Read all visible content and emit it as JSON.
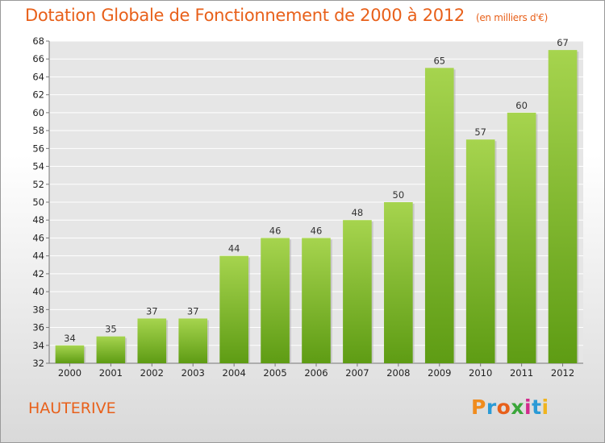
{
  "header": {
    "title": "Dotation Globale de Fonctionnement de 2000 à 2012",
    "unit": "(en milliers d'€)"
  },
  "footer": {
    "commune": "HAUTERIVE",
    "logo": "Proxiti",
    "logo_colors": [
      "#f08c1e",
      "#2a9ad6",
      "#e8601a",
      "#3aa63a",
      "#d22a8c",
      "#2a9ad6",
      "#f0b41e"
    ]
  },
  "colors": {
    "title": "#e8601a",
    "bar_top": "#a6d44e",
    "bar_bottom": "#5e9c14",
    "grid": "#ffffff",
    "axis": "#777777"
  },
  "chart_data": {
    "type": "bar",
    "title": "Dotation Globale de Fonctionnement de 2000 à 2012",
    "subtitle": "(en milliers d'€)",
    "xlabel": "",
    "ylabel": "",
    "categories": [
      "2000",
      "2001",
      "2002",
      "2003",
      "2004",
      "2005",
      "2006",
      "2007",
      "2008",
      "2009",
      "2010",
      "2011",
      "2012"
    ],
    "values": [
      34,
      35,
      37,
      37,
      44,
      46,
      46,
      48,
      50,
      65,
      57,
      60,
      67
    ],
    "ylim": [
      32,
      68
    ],
    "yticks": [
      32,
      34,
      36,
      38,
      40,
      42,
      44,
      46,
      48,
      50,
      52,
      54,
      56,
      58,
      60,
      62,
      64,
      66,
      68
    ],
    "grid": true,
    "legend": "none"
  }
}
